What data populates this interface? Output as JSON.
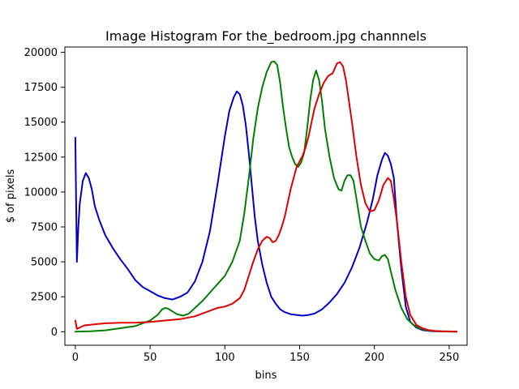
{
  "chart_data": {
    "type": "line",
    "title": "Image Histogram For the_bedroom.jpg channnels",
    "xlabel": "bins",
    "ylabel": "$ of pixels",
    "xlim": [
      -7,
      262
    ],
    "ylim": [
      -970,
      20380
    ],
    "xticks": [
      0,
      50,
      100,
      150,
      200,
      250
    ],
    "yticks": [
      0,
      2500,
      5000,
      7500,
      10000,
      12500,
      15000,
      17500,
      20000
    ],
    "xtick_labels": [
      "0",
      "50",
      "100",
      "150",
      "200",
      "250"
    ],
    "ytick_labels": [
      "0",
      "2500",
      "5000",
      "7500",
      "10000",
      "12500",
      "15000",
      "17500",
      "20000"
    ],
    "grid": false,
    "legend": "none",
    "series": [
      {
        "color": "#0000cc",
        "x": [
          0,
          1,
          2,
          3,
          5,
          7,
          9,
          11,
          13,
          16,
          20,
          25,
          30,
          35,
          40,
          45,
          50,
          55,
          60,
          65,
          70,
          75,
          80,
          85,
          90,
          95,
          100,
          103,
          106,
          108,
          110,
          112,
          114,
          116,
          118,
          120,
          122,
          125,
          128,
          131,
          134,
          137,
          140,
          144,
          148,
          152,
          156,
          160,
          165,
          170,
          175,
          180,
          185,
          190,
          195,
          199,
          202,
          205,
          207,
          209,
          211,
          213,
          215,
          218,
          221,
          224,
          228,
          232,
          236,
          240,
          245,
          250,
          255
        ],
        "y": [
          13900,
          5000,
          7500,
          9200,
          10800,
          11350,
          11000,
          10200,
          9000,
          8000,
          6900,
          6000,
          5200,
          4500,
          3700,
          3200,
          2900,
          2600,
          2400,
          2300,
          2500,
          2800,
          3600,
          5000,
          7200,
          10500,
          14000,
          15800,
          16800,
          17200,
          17000,
          16200,
          14800,
          12800,
          10500,
          8200,
          6500,
          4800,
          3500,
          2500,
          2000,
          1600,
          1400,
          1250,
          1200,
          1150,
          1200,
          1300,
          1600,
          2100,
          2700,
          3500,
          4600,
          6000,
          7800,
          9500,
          11200,
          12300,
          12800,
          12600,
          12000,
          11000,
          8000,
          4500,
          1800,
          700,
          300,
          120,
          60,
          30,
          15,
          10,
          5
        ]
      },
      {
        "color": "#008000",
        "x": [
          0,
          10,
          20,
          30,
          40,
          50,
          55,
          58,
          60,
          62,
          65,
          68,
          72,
          76,
          80,
          85,
          90,
          95,
          100,
          105,
          110,
          113,
          116,
          119,
          122,
          125,
          128,
          131,
          133,
          135,
          137,
          139,
          141,
          143,
          145,
          147,
          149,
          151,
          153,
          155,
          157,
          159,
          161,
          163,
          165,
          167,
          170,
          173,
          176,
          178,
          180,
          182,
          184,
          186,
          188,
          191,
          194,
          197,
          200,
          203,
          205,
          207,
          209,
          211,
          214,
          218,
          222,
          226,
          230,
          235,
          240,
          245,
          250,
          255
        ],
        "y": [
          0,
          30,
          100,
          250,
          400,
          800,
          1200,
          1600,
          1700,
          1650,
          1450,
          1250,
          1150,
          1300,
          1700,
          2200,
          2800,
          3400,
          4000,
          5000,
          6500,
          8500,
          11000,
          13800,
          16000,
          17500,
          18600,
          19300,
          19350,
          19100,
          17800,
          16000,
          14500,
          13200,
          12500,
          12000,
          11800,
          12100,
          12800,
          14500,
          16500,
          18000,
          18700,
          18000,
          16500,
          14500,
          12500,
          11000,
          10200,
          10100,
          10800,
          11200,
          11200,
          10800,
          9500,
          7500,
          6500,
          5600,
          5200,
          5100,
          5400,
          5500,
          5200,
          4300,
          3000,
          1700,
          900,
          500,
          250,
          100,
          50,
          30,
          20,
          10
        ]
      },
      {
        "color": "#e00000",
        "x": [
          0,
          1,
          3,
          6,
          10,
          15,
          20,
          25,
          30,
          40,
          50,
          60,
          70,
          80,
          90,
          95,
          100,
          105,
          110,
          113,
          116,
          119,
          122,
          125,
          128,
          130,
          132,
          134,
          136,
          138,
          140,
          142,
          144,
          146,
          148,
          150,
          152,
          154,
          156,
          158,
          160,
          163,
          166,
          169,
          172,
          175,
          177,
          179,
          181,
          183,
          185,
          188,
          191,
          194,
          197,
          200,
          203,
          206,
          209,
          211,
          213,
          215,
          218,
          221,
          224,
          228,
          232,
          236,
          240,
          245,
          250,
          255
        ],
        "y": [
          800,
          200,
          300,
          450,
          500,
          550,
          600,
          620,
          640,
          650,
          700,
          800,
          900,
          1100,
          1500,
          1700,
          1800,
          2000,
          2400,
          3000,
          4000,
          5000,
          5900,
          6500,
          6800,
          6700,
          6400,
          6500,
          6900,
          7500,
          8200,
          9200,
          10200,
          11000,
          11800,
          12200,
          12600,
          13200,
          14000,
          15000,
          16000,
          17000,
          17800,
          18300,
          18500,
          19200,
          19300,
          19000,
          18000,
          16500,
          15000,
          12500,
          10500,
          9200,
          8600,
          8700,
          9400,
          10500,
          11000,
          10800,
          9500,
          8000,
          5000,
          2500,
          1200,
          500,
          250,
          120,
          60,
          30,
          15,
          5
        ]
      }
    ]
  }
}
